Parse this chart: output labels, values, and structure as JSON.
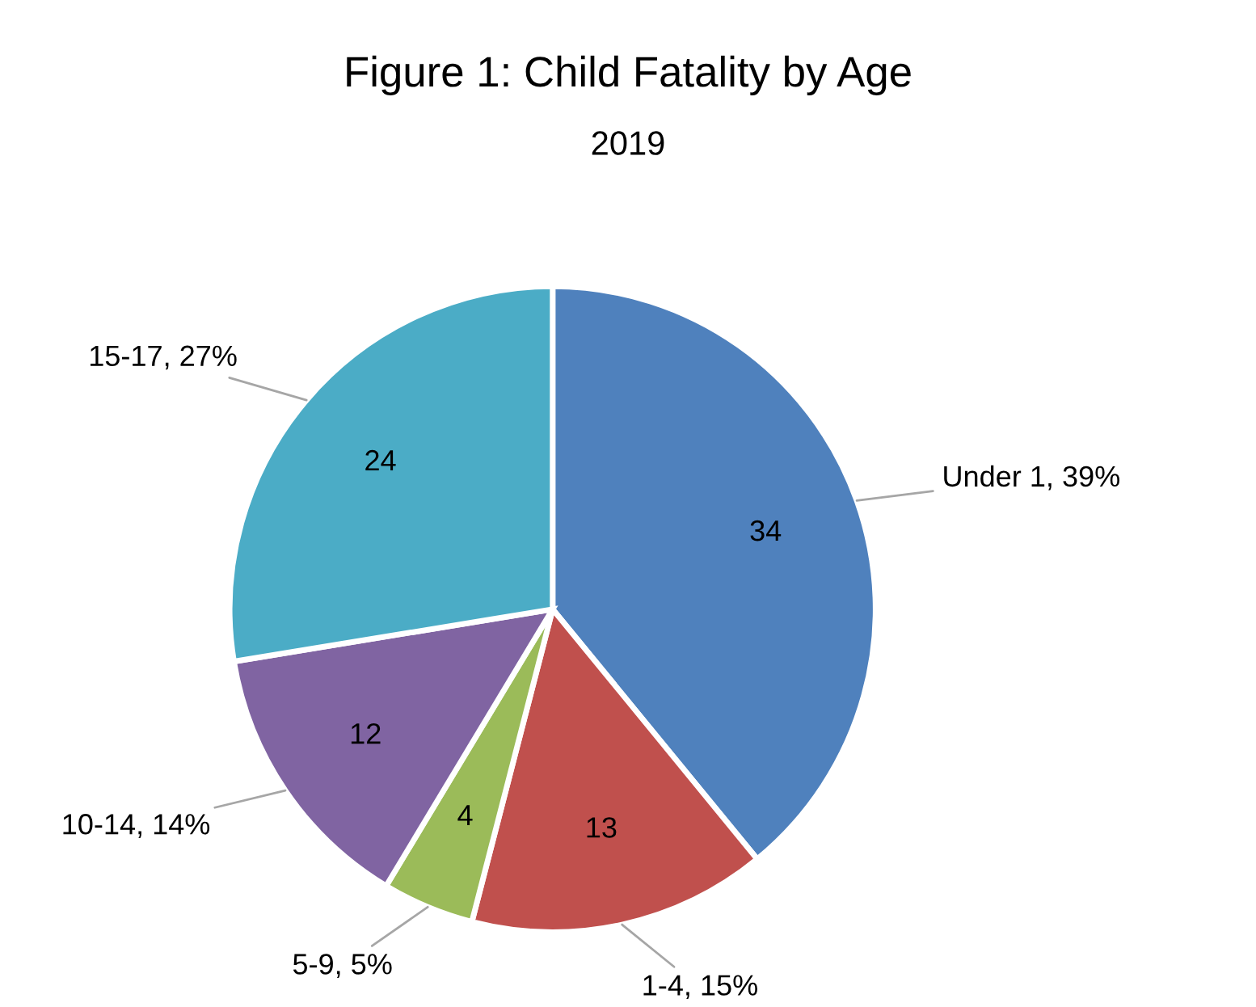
{
  "chart_data": {
    "type": "pie",
    "title": "Figure 1: Child Fatality by Age",
    "subtitle": "2019",
    "categories": [
      "Under 1, 39%",
      "1-4, 15%",
      "5-9, 5%",
      "10-14, 14%",
      "15-17, 27%"
    ],
    "values": [
      34,
      13,
      4,
      12,
      24
    ],
    "colors": [
      "#4f81bd",
      "#c0504d",
      "#9bbb59",
      "#8064a2",
      "#4bacc6"
    ],
    "data_labels": true,
    "legend": false
  }
}
